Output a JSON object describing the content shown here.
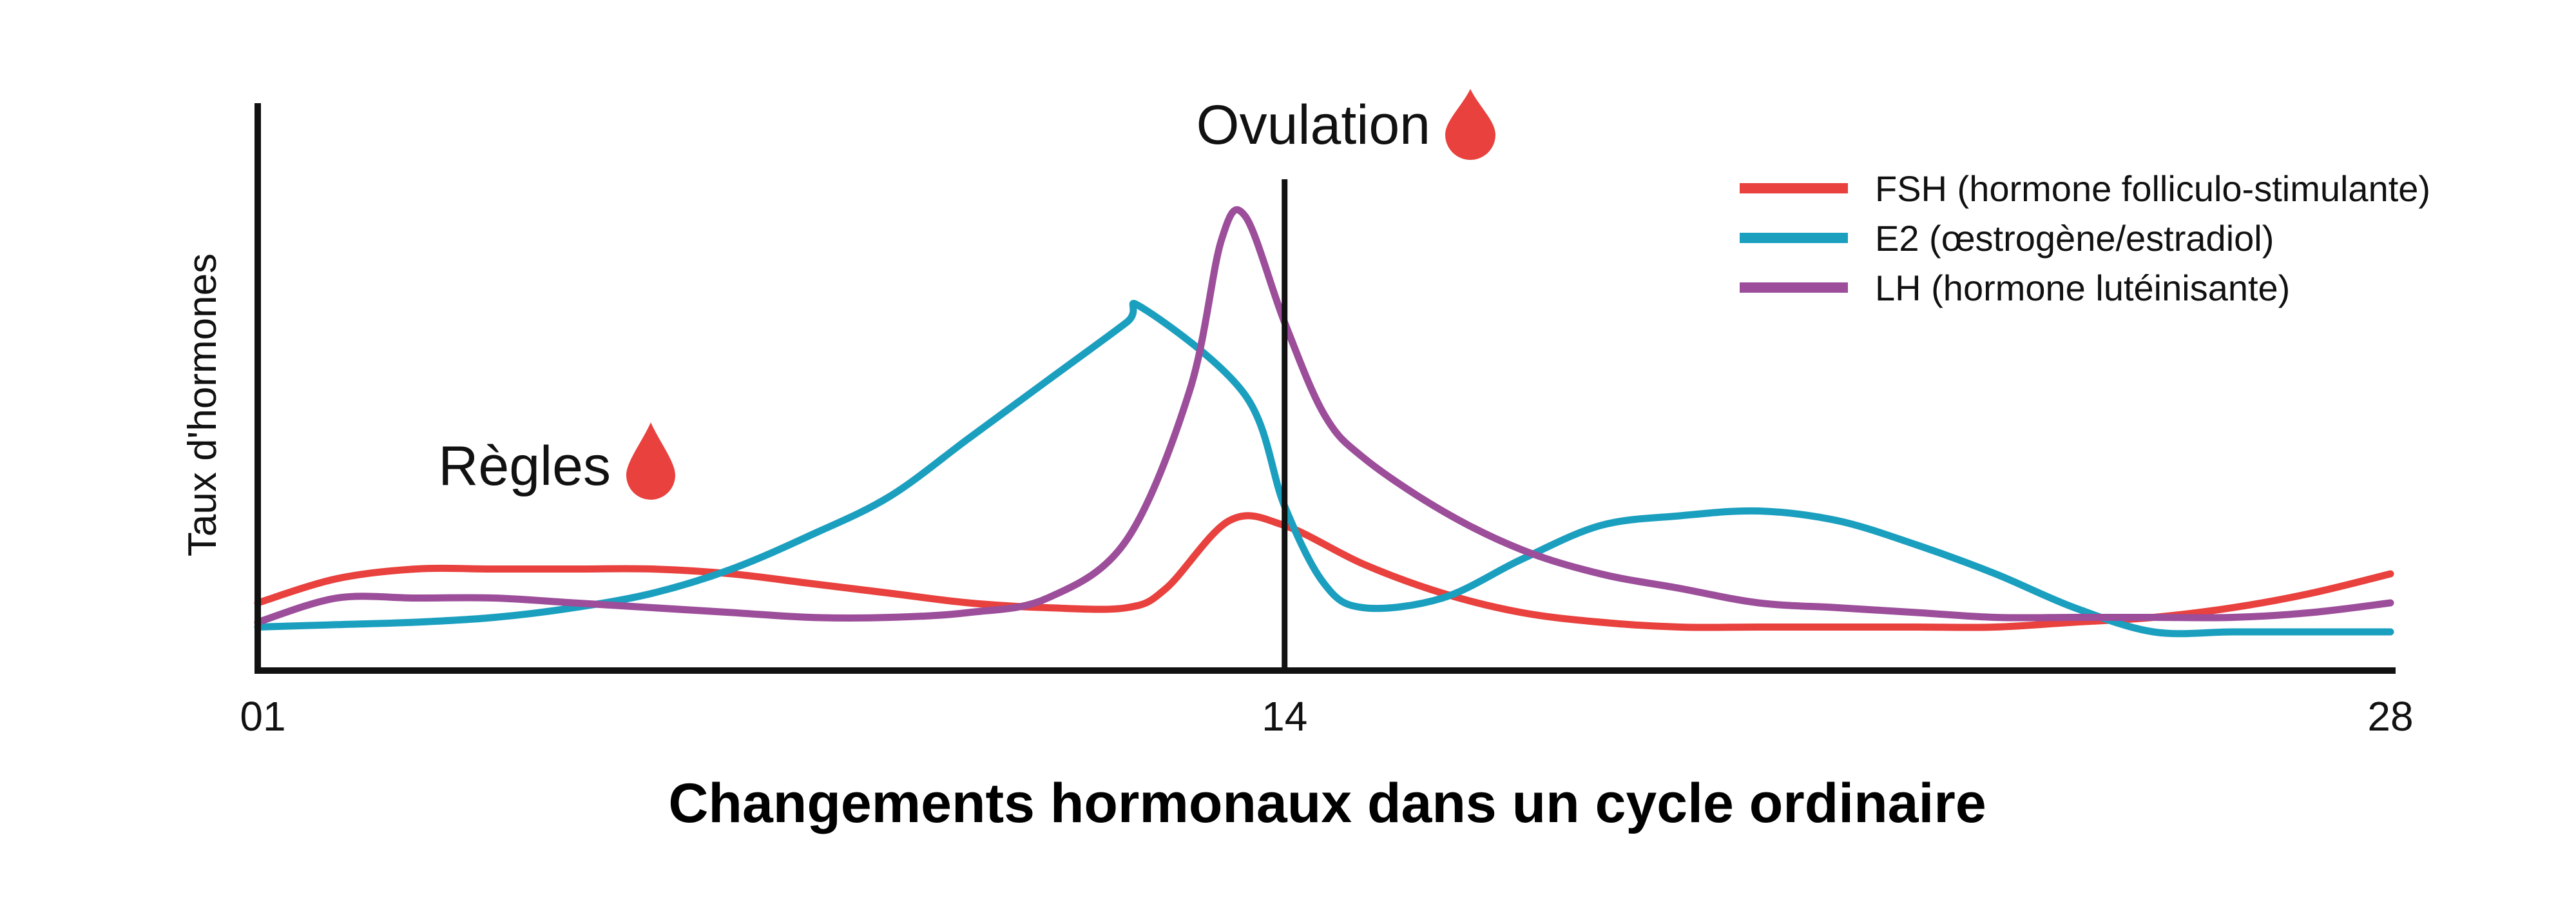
{
  "chart_data": {
    "type": "line",
    "title": "Changements hormonaux dans un cycle ordinaire",
    "ylabel": "Taux d'hormones",
    "xlabel": "",
    "x_ticks": [
      "01",
      "14",
      "28"
    ],
    "xlim": [
      1,
      28
    ],
    "ylim": [
      0,
      100
    ],
    "grid": false,
    "legend_position": "top-right",
    "annotations": [
      {
        "text": "Ovulation",
        "x": 14,
        "icon": "blood-drop-icon",
        "vertical_line": true
      },
      {
        "text": "Règles",
        "x": 5,
        "icon": "blood-drop-icon"
      }
    ],
    "series": [
      {
        "name": "FSH (hormone folliculo-stimulante)",
        "color": "#e8413e",
        "points": [
          [
            1,
            14
          ],
          [
            2,
            19
          ],
          [
            3,
            21
          ],
          [
            4,
            21
          ],
          [
            5,
            21
          ],
          [
            6,
            21
          ],
          [
            7,
            20
          ],
          [
            8,
            18
          ],
          [
            9,
            16
          ],
          [
            10,
            14
          ],
          [
            11,
            13
          ],
          [
            12,
            13
          ],
          [
            12.5,
            17
          ],
          [
            13.3,
            31
          ],
          [
            14,
            30
          ],
          [
            15,
            22
          ],
          [
            16,
            16
          ],
          [
            17,
            12
          ],
          [
            18,
            10
          ],
          [
            19,
            9
          ],
          [
            20,
            9
          ],
          [
            21,
            9
          ],
          [
            22,
            9
          ],
          [
            23,
            9
          ],
          [
            24,
            10
          ],
          [
            25,
            11
          ],
          [
            26,
            13
          ],
          [
            27,
            16
          ],
          [
            28,
            20
          ]
        ]
      },
      {
        "name": "E2 (œstrogène/estradiol)",
        "color": "#1b9fbf",
        "points": [
          [
            1,
            9
          ],
          [
            2,
            9.5
          ],
          [
            3,
            10
          ],
          [
            4,
            11
          ],
          [
            5,
            13
          ],
          [
            6,
            16
          ],
          [
            7,
            21
          ],
          [
            8,
            28
          ],
          [
            9,
            36
          ],
          [
            10,
            48
          ],
          [
            11,
            60
          ],
          [
            12,
            72
          ],
          [
            12.2,
            75
          ],
          [
            13.5,
            57
          ],
          [
            14,
            34
          ],
          [
            14.5,
            18
          ],
          [
            15,
            13
          ],
          [
            16,
            15
          ],
          [
            17,
            23
          ],
          [
            18,
            30
          ],
          [
            19,
            32
          ],
          [
            20,
            33
          ],
          [
            21,
            31
          ],
          [
            22,
            26
          ],
          [
            23,
            20
          ],
          [
            24,
            13
          ],
          [
            25,
            8
          ],
          [
            26,
            8
          ],
          [
            27,
            8
          ],
          [
            28,
            8
          ]
        ]
      },
      {
        "name": "LH (hormone lutéinisante)",
        "color": "#9c4e9a",
        "points": [
          [
            1,
            10
          ],
          [
            2,
            15
          ],
          [
            3,
            15
          ],
          [
            4,
            15
          ],
          [
            5,
            14
          ],
          [
            6,
            13
          ],
          [
            7,
            12
          ],
          [
            8,
            11
          ],
          [
            9,
            11
          ],
          [
            10,
            12
          ],
          [
            11,
            15
          ],
          [
            12,
            27
          ],
          [
            12.8,
            58
          ],
          [
            13.2,
            89
          ],
          [
            13.5,
            94
          ],
          [
            14,
            72
          ],
          [
            14.5,
            53
          ],
          [
            15,
            44
          ],
          [
            16,
            33
          ],
          [
            17,
            25
          ],
          [
            18,
            20
          ],
          [
            19,
            17
          ],
          [
            20,
            14
          ],
          [
            21,
            13
          ],
          [
            22,
            12
          ],
          [
            23,
            11
          ],
          [
            24,
            11
          ],
          [
            25,
            11
          ],
          [
            26,
            11
          ],
          [
            27,
            12
          ],
          [
            28,
            14
          ]
        ]
      }
    ]
  }
}
